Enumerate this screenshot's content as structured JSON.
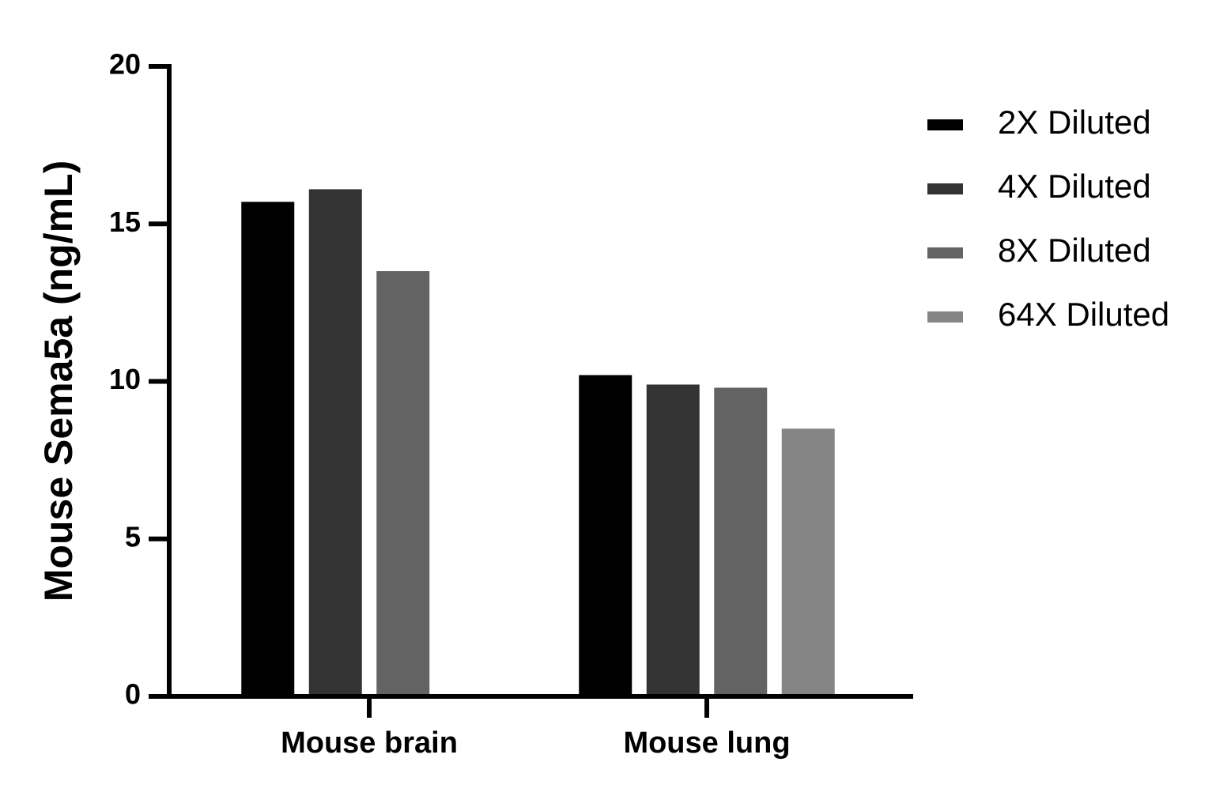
{
  "chart_data": {
    "type": "bar",
    "y_label": "Mouse Sema5a (ng/mL)",
    "categories": [
      "Mouse brain",
      "Mouse lung"
    ],
    "series": [
      {
        "name": "2X Diluted",
        "color": "#000000",
        "values": [
          15.7,
          10.2
        ]
      },
      {
        "name": "4X Diluted",
        "color": "#333333",
        "values": [
          16.1,
          9.9
        ]
      },
      {
        "name": "8X Diluted",
        "color": "#636363",
        "values": [
          13.5,
          9.8
        ]
      },
      {
        "name": "64X Diluted",
        "color": "#858585",
        "values": [
          null,
          8.5
        ]
      }
    ],
    "ylim": [
      0,
      20
    ],
    "yticks": [
      0,
      5,
      10,
      15,
      20
    ],
    "grid": false,
    "legend": "right"
  }
}
